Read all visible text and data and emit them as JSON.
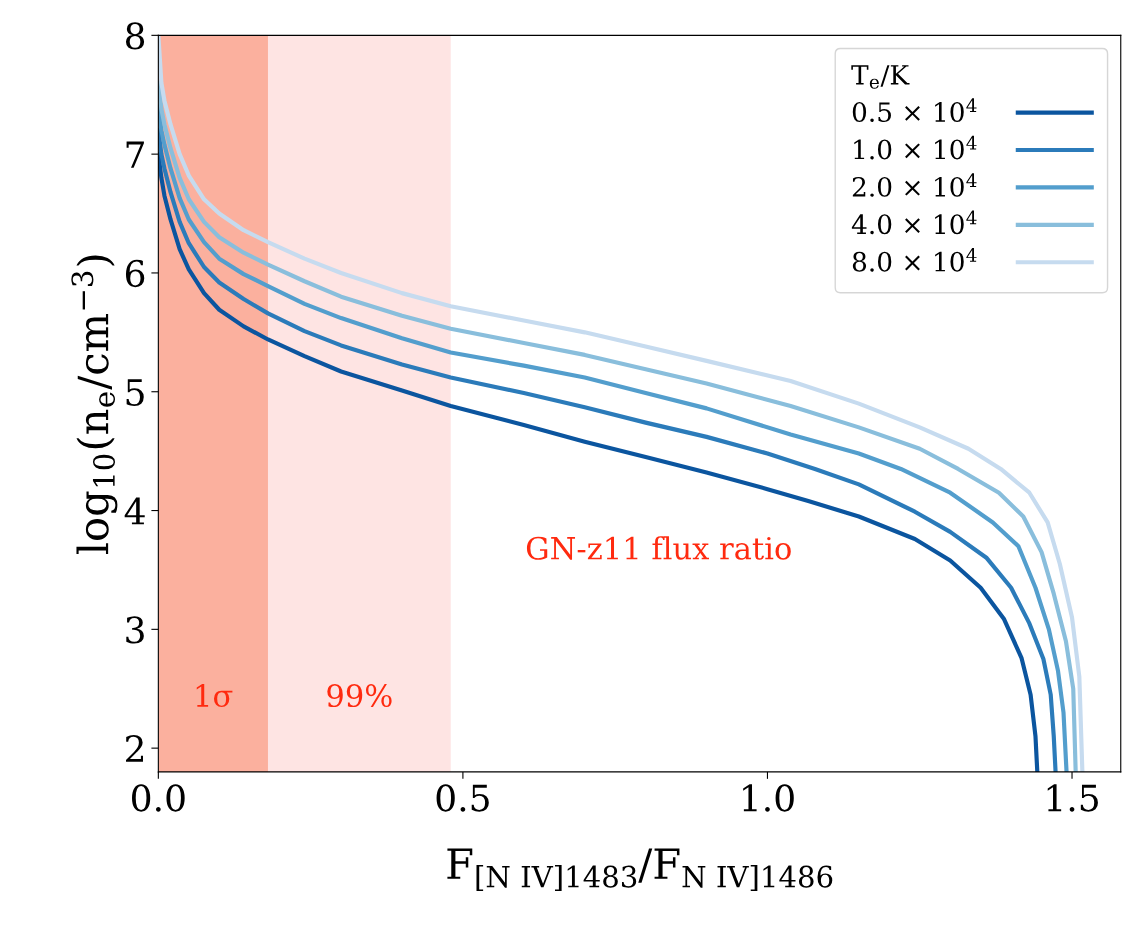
{
  "chart_data": {
    "type": "line",
    "xlabel": "F$_{[N IV]1483}$/F$_{N IV]1486}$",
    "ylabel": "log$_{10}$(n$_{e}$/cm$^{−3}$)",
    "legend_title": "T$_{e}$/K",
    "xlim": [
      0,
      1.58
    ],
    "ylim": [
      1.8,
      8
    ],
    "xticks": [
      {
        "value": 0,
        "label": "0.0"
      },
      0.5,
      {
        "value": 1,
        "label": "1.0"
      },
      1.5
    ],
    "yticks": [
      2,
      3,
      4,
      5,
      6,
      7,
      8
    ],
    "grid": false,
    "legend": "top right",
    "line_style": "solid",
    "marker": "none",
    "bands": [
      {
        "axis": "x",
        "from": 0,
        "to": 0.18,
        "label": "1σ",
        "color": "#fbb09e"
      },
      {
        "axis": "x",
        "from": 0.18,
        "to": 0.48,
        "label": "99%",
        "color": "#fee4e3"
      }
    ],
    "annotations": [
      "GN-z11 flux ratio"
    ],
    "series": [
      {
        "name": "0.5 × 10$^{4}$",
        "color": "#0b559f",
        "x": [
          0,
          0.005,
          0.01,
          0.02,
          0.035,
          0.05,
          0.075,
          0.1,
          0.14,
          0.18,
          0.24,
          0.3,
          0.4,
          0.48,
          0.6,
          0.7,
          0.8,
          0.9,
          1.0,
          1.067,
          1.15,
          1.242,
          1.3,
          1.35,
          1.388,
          1.417,
          1.432,
          1.44,
          1.443
        ],
        "values": [
          7.0,
          6.8,
          6.65,
          6.45,
          6.2,
          6.03,
          5.83,
          5.69,
          5.55,
          5.44,
          5.3,
          5.17,
          5.01,
          4.88,
          4.72,
          4.58,
          4.45,
          4.32,
          4.18,
          4.08,
          3.95,
          3.76,
          3.58,
          3.35,
          3.09,
          2.76,
          2.45,
          2.1,
          1.8
        ]
      },
      {
        "name": "1.0 × 10$^{4}$",
        "color": "#2b7bba",
        "x": [
          0,
          0.005,
          0.01,
          0.02,
          0.035,
          0.05,
          0.075,
          0.1,
          0.14,
          0.18,
          0.24,
          0.3,
          0.4,
          0.48,
          0.6,
          0.7,
          0.8,
          0.9,
          1.0,
          1.078,
          1.15,
          1.242,
          1.3,
          1.36,
          1.4,
          1.43,
          1.453,
          1.465,
          1.47,
          1.473
        ],
        "values": [
          7.2,
          7.0,
          6.88,
          6.68,
          6.43,
          6.25,
          6.05,
          5.92,
          5.78,
          5.66,
          5.51,
          5.39,
          5.23,
          5.12,
          4.99,
          4.87,
          4.74,
          4.62,
          4.48,
          4.35,
          4.22,
          3.99,
          3.82,
          3.6,
          3.35,
          3.05,
          2.75,
          2.45,
          2.1,
          1.8
        ]
      },
      {
        "name": "2.0 × 10$^{4}$",
        "color": "#539ecd",
        "x": [
          0,
          0.005,
          0.01,
          0.02,
          0.035,
          0.05,
          0.075,
          0.1,
          0.14,
          0.18,
          0.24,
          0.3,
          0.4,
          0.48,
          0.6,
          0.7,
          0.8,
          0.9,
          1.038,
          1.15,
          1.219,
          1.3,
          1.37,
          1.412,
          1.44,
          1.462,
          1.477,
          1.486,
          1.491
        ],
        "values": [
          7.4,
          7.2,
          7.08,
          6.88,
          6.63,
          6.45,
          6.26,
          6.12,
          5.99,
          5.89,
          5.74,
          5.62,
          5.45,
          5.33,
          5.22,
          5.12,
          4.99,
          4.86,
          4.64,
          4.48,
          4.35,
          4.15,
          3.9,
          3.7,
          3.35,
          3.0,
          2.65,
          2.3,
          1.8
        ]
      },
      {
        "name": "4.0 × 10$^{4}$",
        "color": "#89bedc",
        "x": [
          0,
          0.005,
          0.01,
          0.02,
          0.035,
          0.05,
          0.075,
          0.1,
          0.14,
          0.18,
          0.24,
          0.3,
          0.4,
          0.48,
          0.6,
          0.7,
          0.8,
          0.9,
          1.038,
          1.15,
          1.25,
          1.313,
          1.38,
          1.42,
          1.45,
          1.47,
          1.49,
          1.502,
          1.506
        ],
        "values": [
          7.6,
          7.38,
          7.25,
          7.05,
          6.8,
          6.62,
          6.43,
          6.3,
          6.17,
          6.07,
          5.93,
          5.8,
          5.64,
          5.53,
          5.41,
          5.31,
          5.19,
          5.07,
          4.88,
          4.7,
          4.52,
          4.35,
          4.15,
          3.95,
          3.65,
          3.3,
          2.9,
          2.5,
          1.8
        ]
      },
      {
        "name": "8.0 × 10$^{4}$",
        "color": "#c6dbef",
        "x": [
          0,
          0.005,
          0.01,
          0.02,
          0.035,
          0.05,
          0.075,
          0.1,
          0.14,
          0.18,
          0.24,
          0.3,
          0.4,
          0.48,
          0.6,
          0.7,
          0.8,
          0.9,
          1.038,
          1.15,
          1.25,
          1.33,
          1.383,
          1.43,
          1.46,
          1.48,
          1.5,
          1.512,
          1.517
        ],
        "values": [
          8.0,
          7.6,
          7.45,
          7.25,
          7.0,
          6.82,
          6.62,
          6.5,
          6.36,
          6.26,
          6.12,
          6.0,
          5.83,
          5.72,
          5.6,
          5.5,
          5.38,
          5.26,
          5.09,
          4.9,
          4.7,
          4.52,
          4.35,
          4.15,
          3.9,
          3.55,
          3.1,
          2.6,
          1.8
        ]
      }
    ]
  }
}
